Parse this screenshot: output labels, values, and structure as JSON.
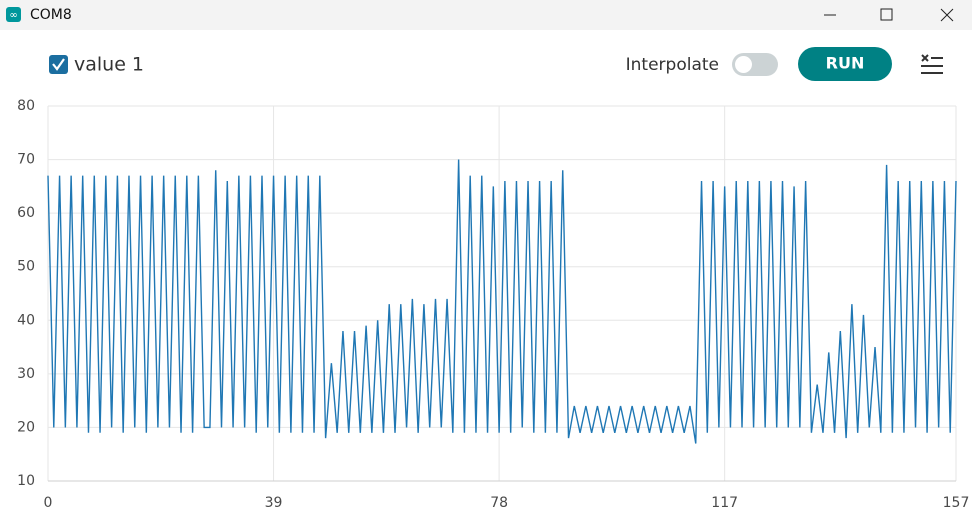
{
  "window": {
    "title": "COM8"
  },
  "toolbar": {
    "interpolate": "Interpolate",
    "run": "RUN"
  },
  "chart_data": {
    "type": "line",
    "series": [
      {
        "name": "value 1",
        "color": "#1f77b4",
        "values": [
          67,
          20,
          67,
          20,
          67,
          20,
          67,
          19,
          67,
          19,
          67,
          20,
          67,
          19,
          67,
          20,
          67,
          19,
          67,
          20,
          67,
          20,
          67,
          19,
          67,
          19,
          67,
          20,
          20,
          68,
          20,
          66,
          20,
          67,
          20,
          67,
          19,
          67,
          20,
          67,
          19,
          67,
          19,
          67,
          19,
          67,
          19,
          67,
          18,
          32,
          19,
          38,
          19,
          38,
          19,
          39,
          19,
          40,
          19,
          43,
          19,
          43,
          20,
          44,
          19,
          43,
          20,
          44,
          20,
          44,
          19,
          70,
          19,
          67,
          19,
          67,
          19,
          65,
          19,
          66,
          19,
          66,
          20,
          66,
          19,
          66,
          19,
          66,
          19,
          68,
          18,
          24,
          19,
          24,
          19,
          24,
          19,
          24,
          19,
          24,
          19,
          24,
          19,
          24,
          19,
          24,
          19,
          24,
          19,
          24,
          19,
          24,
          17,
          66,
          19,
          66,
          20,
          65,
          20,
          66,
          20,
          66,
          20,
          66,
          20,
          66,
          20,
          66,
          20,
          65,
          20,
          66,
          19,
          28,
          19,
          34,
          19,
          38,
          18,
          43,
          19,
          41,
          20,
          35,
          19,
          69,
          19,
          66,
          19,
          66,
          20,
          66,
          19,
          66,
          20,
          66,
          19,
          66
        ]
      }
    ],
    "xlim": [
      0,
      157
    ],
    "xticks": [
      0,
      39,
      78,
      117,
      157
    ],
    "ylim": [
      10,
      80
    ],
    "yticks": [
      10,
      20,
      30,
      40,
      50,
      60,
      70,
      80
    ],
    "grid": true
  }
}
